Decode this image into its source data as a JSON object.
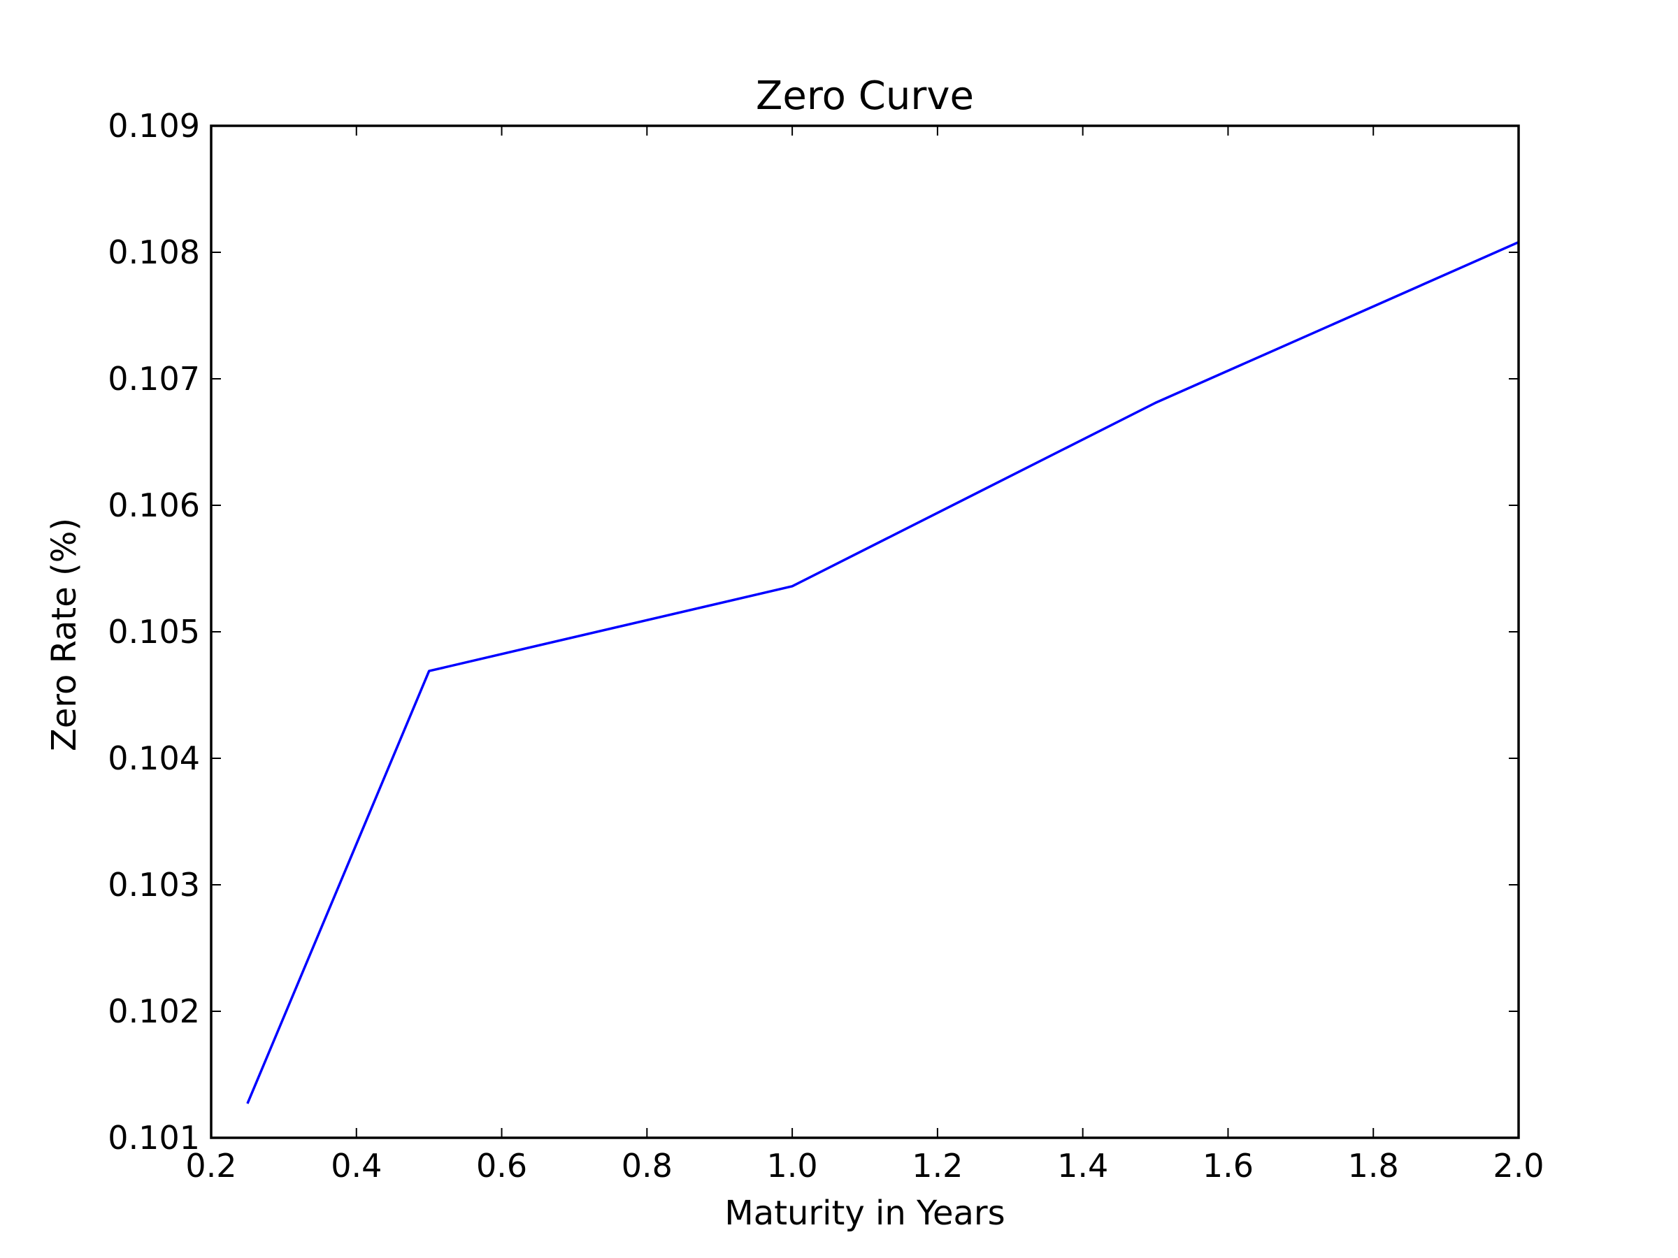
{
  "chart_data": {
    "type": "line",
    "title": "Zero Curve",
    "xlabel": "Maturity in Years",
    "ylabel": "Zero Rate (%)",
    "xlim": [
      0.2,
      2.0
    ],
    "ylim": [
      0.101,
      0.109
    ],
    "xticks": [
      "0.2",
      "0.4",
      "0.6",
      "0.8",
      "1.0",
      "1.2",
      "1.4",
      "1.6",
      "1.8",
      "2.0"
    ],
    "yticks": [
      "0.101",
      "0.102",
      "0.103",
      "0.104",
      "0.105",
      "0.106",
      "0.107",
      "0.108",
      "0.109"
    ],
    "grid": false,
    "legend": "none",
    "series": [
      {
        "color": "#0000ff",
        "x": [
          0.25,
          0.5,
          1.0,
          1.5,
          2.0
        ],
        "y": [
          0.10127,
          0.10469,
          0.10536,
          0.10681,
          0.10808
        ]
      }
    ]
  }
}
